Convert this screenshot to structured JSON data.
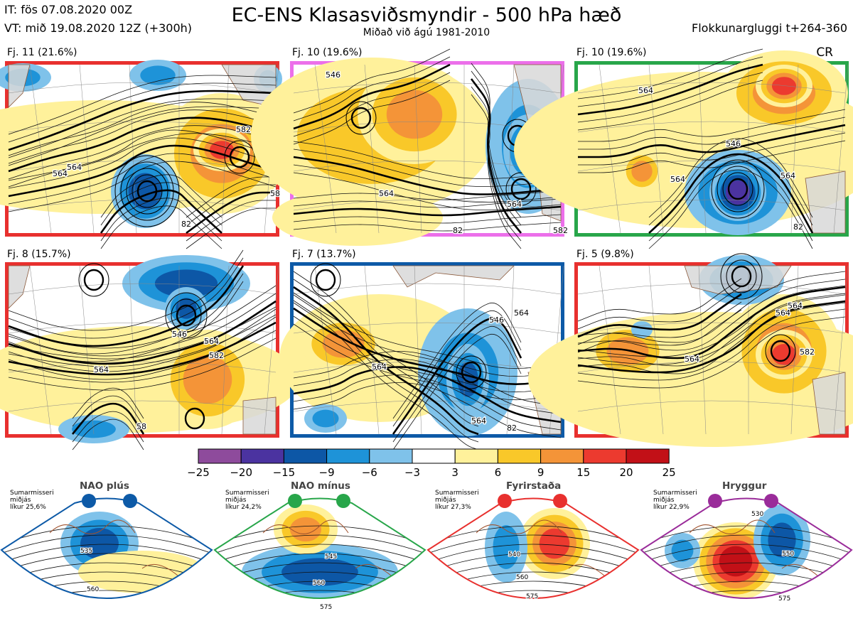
{
  "header": {
    "init_line": "IT: fös 07.08.2020 00Z",
    "valid_line": "VT: mið 19.08.2020 12Z  (+300h)",
    "title": "EC-ENS Klasasviðsmyndir - 500 hPa hæð",
    "subtitle": "Miðað við ágú 1981-2010",
    "window": "Flokkunargluggi t+264-360",
    "tag": "CR"
  },
  "panels": [
    {
      "label": "Fj. 11 (21.6%)",
      "regime": "Fyrirstaða",
      "border_color": "#e8302e",
      "contour_labels": [
        "564",
        "582",
        "564",
        "58",
        "82"
      ]
    },
    {
      "label": "Fj. 10 (19.6%)",
      "regime": "Hryggur",
      "border_color": "#ec6fea",
      "contour_labels": [
        "546",
        "564",
        "564",
        "82",
        "582"
      ]
    },
    {
      "label": "Fj. 10 (19.6%)",
      "regime": "NAO mínus",
      "border_color": "#28a64a",
      "contour_labels": [
        "564",
        "546",
        "564",
        "564",
        "82"
      ]
    },
    {
      "label": "Fj. 8 (15.7%)",
      "regime": "Fyrirstaða",
      "border_color": "#e8302e",
      "contour_labels": [
        "546",
        "564",
        "564",
        "582",
        "58"
      ]
    },
    {
      "label": "Fj. 7 (13.7%)",
      "regime": "NAO plús",
      "border_color": "#0d5aa7",
      "contour_labels": [
        "564",
        "546",
        "564",
        "564",
        "82"
      ]
    },
    {
      "label": "Fj. 5 (9.8%)",
      "regime": "Fyrirstaða",
      "border_color": "#e8302e",
      "contour_labels": [
        "564",
        "564",
        "564",
        "582"
      ]
    }
  ],
  "colorbar": {
    "labels": [
      "−25",
      "−20",
      "−15",
      "−9",
      "−6",
      "−3",
      "3",
      "6",
      "9",
      "15",
      "20",
      "25"
    ],
    "colors": [
      "#8e4b9c",
      "#4b33a0",
      "#0d57a6",
      "#1e93d8",
      "#7fc2ea",
      "#ffffff",
      "#fff19b",
      "#f9c829",
      "#f49438",
      "#ec3a2f",
      "#c21017"
    ]
  },
  "regimes": [
    {
      "name": "NAO plús",
      "season": "Sumarmisseri",
      "average": "miðjás",
      "prob": "líkur 25,6%",
      "color": "#0d5aa7",
      "labels": [
        "535",
        "560"
      ]
    },
    {
      "name": "NAO mínus",
      "season": "Sumarmisseri",
      "average": "miðjás",
      "prob": "líkur 24,2%",
      "color": "#28a64a",
      "labels": [
        "545",
        "560",
        "575"
      ]
    },
    {
      "name": "Fyrirstaða",
      "season": "Sumarmisseri",
      "average": "miðjás",
      "prob": "líkur 27,3%",
      "color": "#e8302e",
      "labels": [
        "540",
        "560",
        "575"
      ]
    },
    {
      "name": "Hryggur",
      "season": "Sumarmisseri",
      "average": "miðjás",
      "prob": "líkur 22,9%",
      "color": "#9a2c9a",
      "labels": [
        "530",
        "550",
        "575"
      ]
    }
  ]
}
